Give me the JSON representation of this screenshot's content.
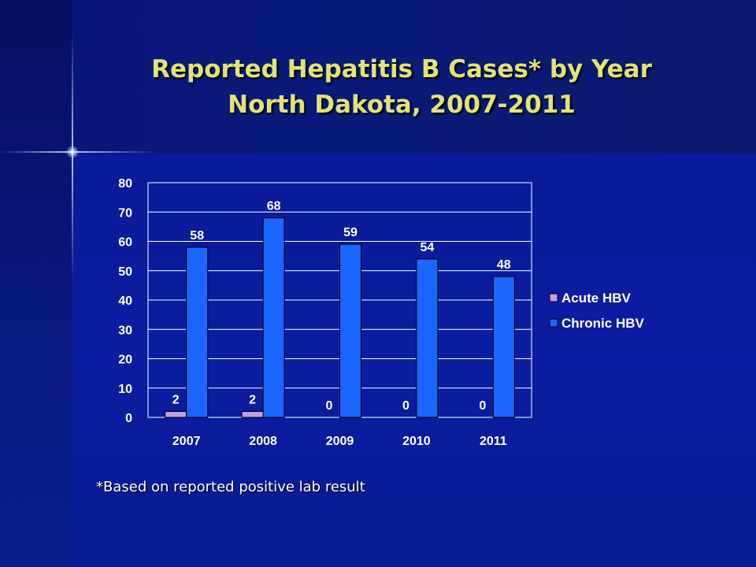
{
  "slide": {
    "title_line1": "Reported Hepatitis B Cases* by Year",
    "title_line2": "North Dakota, 2007-2011",
    "footnote": "*Based on reported positive lab result"
  },
  "colors": {
    "acute": "#c0a0e0",
    "chronic": "#1a66ff",
    "title": "#dfe37a"
  },
  "chart_data": {
    "type": "bar",
    "categories": [
      "2007",
      "2008",
      "2009",
      "2010",
      "2011"
    ],
    "series": [
      {
        "name": "Acute HBV",
        "values": [
          2,
          2,
          0,
          0,
          0
        ]
      },
      {
        "name": "Chronic HBV",
        "values": [
          58,
          68,
          59,
          54,
          48
        ]
      }
    ],
    "ylim": [
      0,
      80
    ],
    "yticks": [
      0,
      10,
      20,
      30,
      40,
      50,
      60,
      70,
      80
    ],
    "grid": true,
    "legend": "right",
    "data_labels": true
  }
}
